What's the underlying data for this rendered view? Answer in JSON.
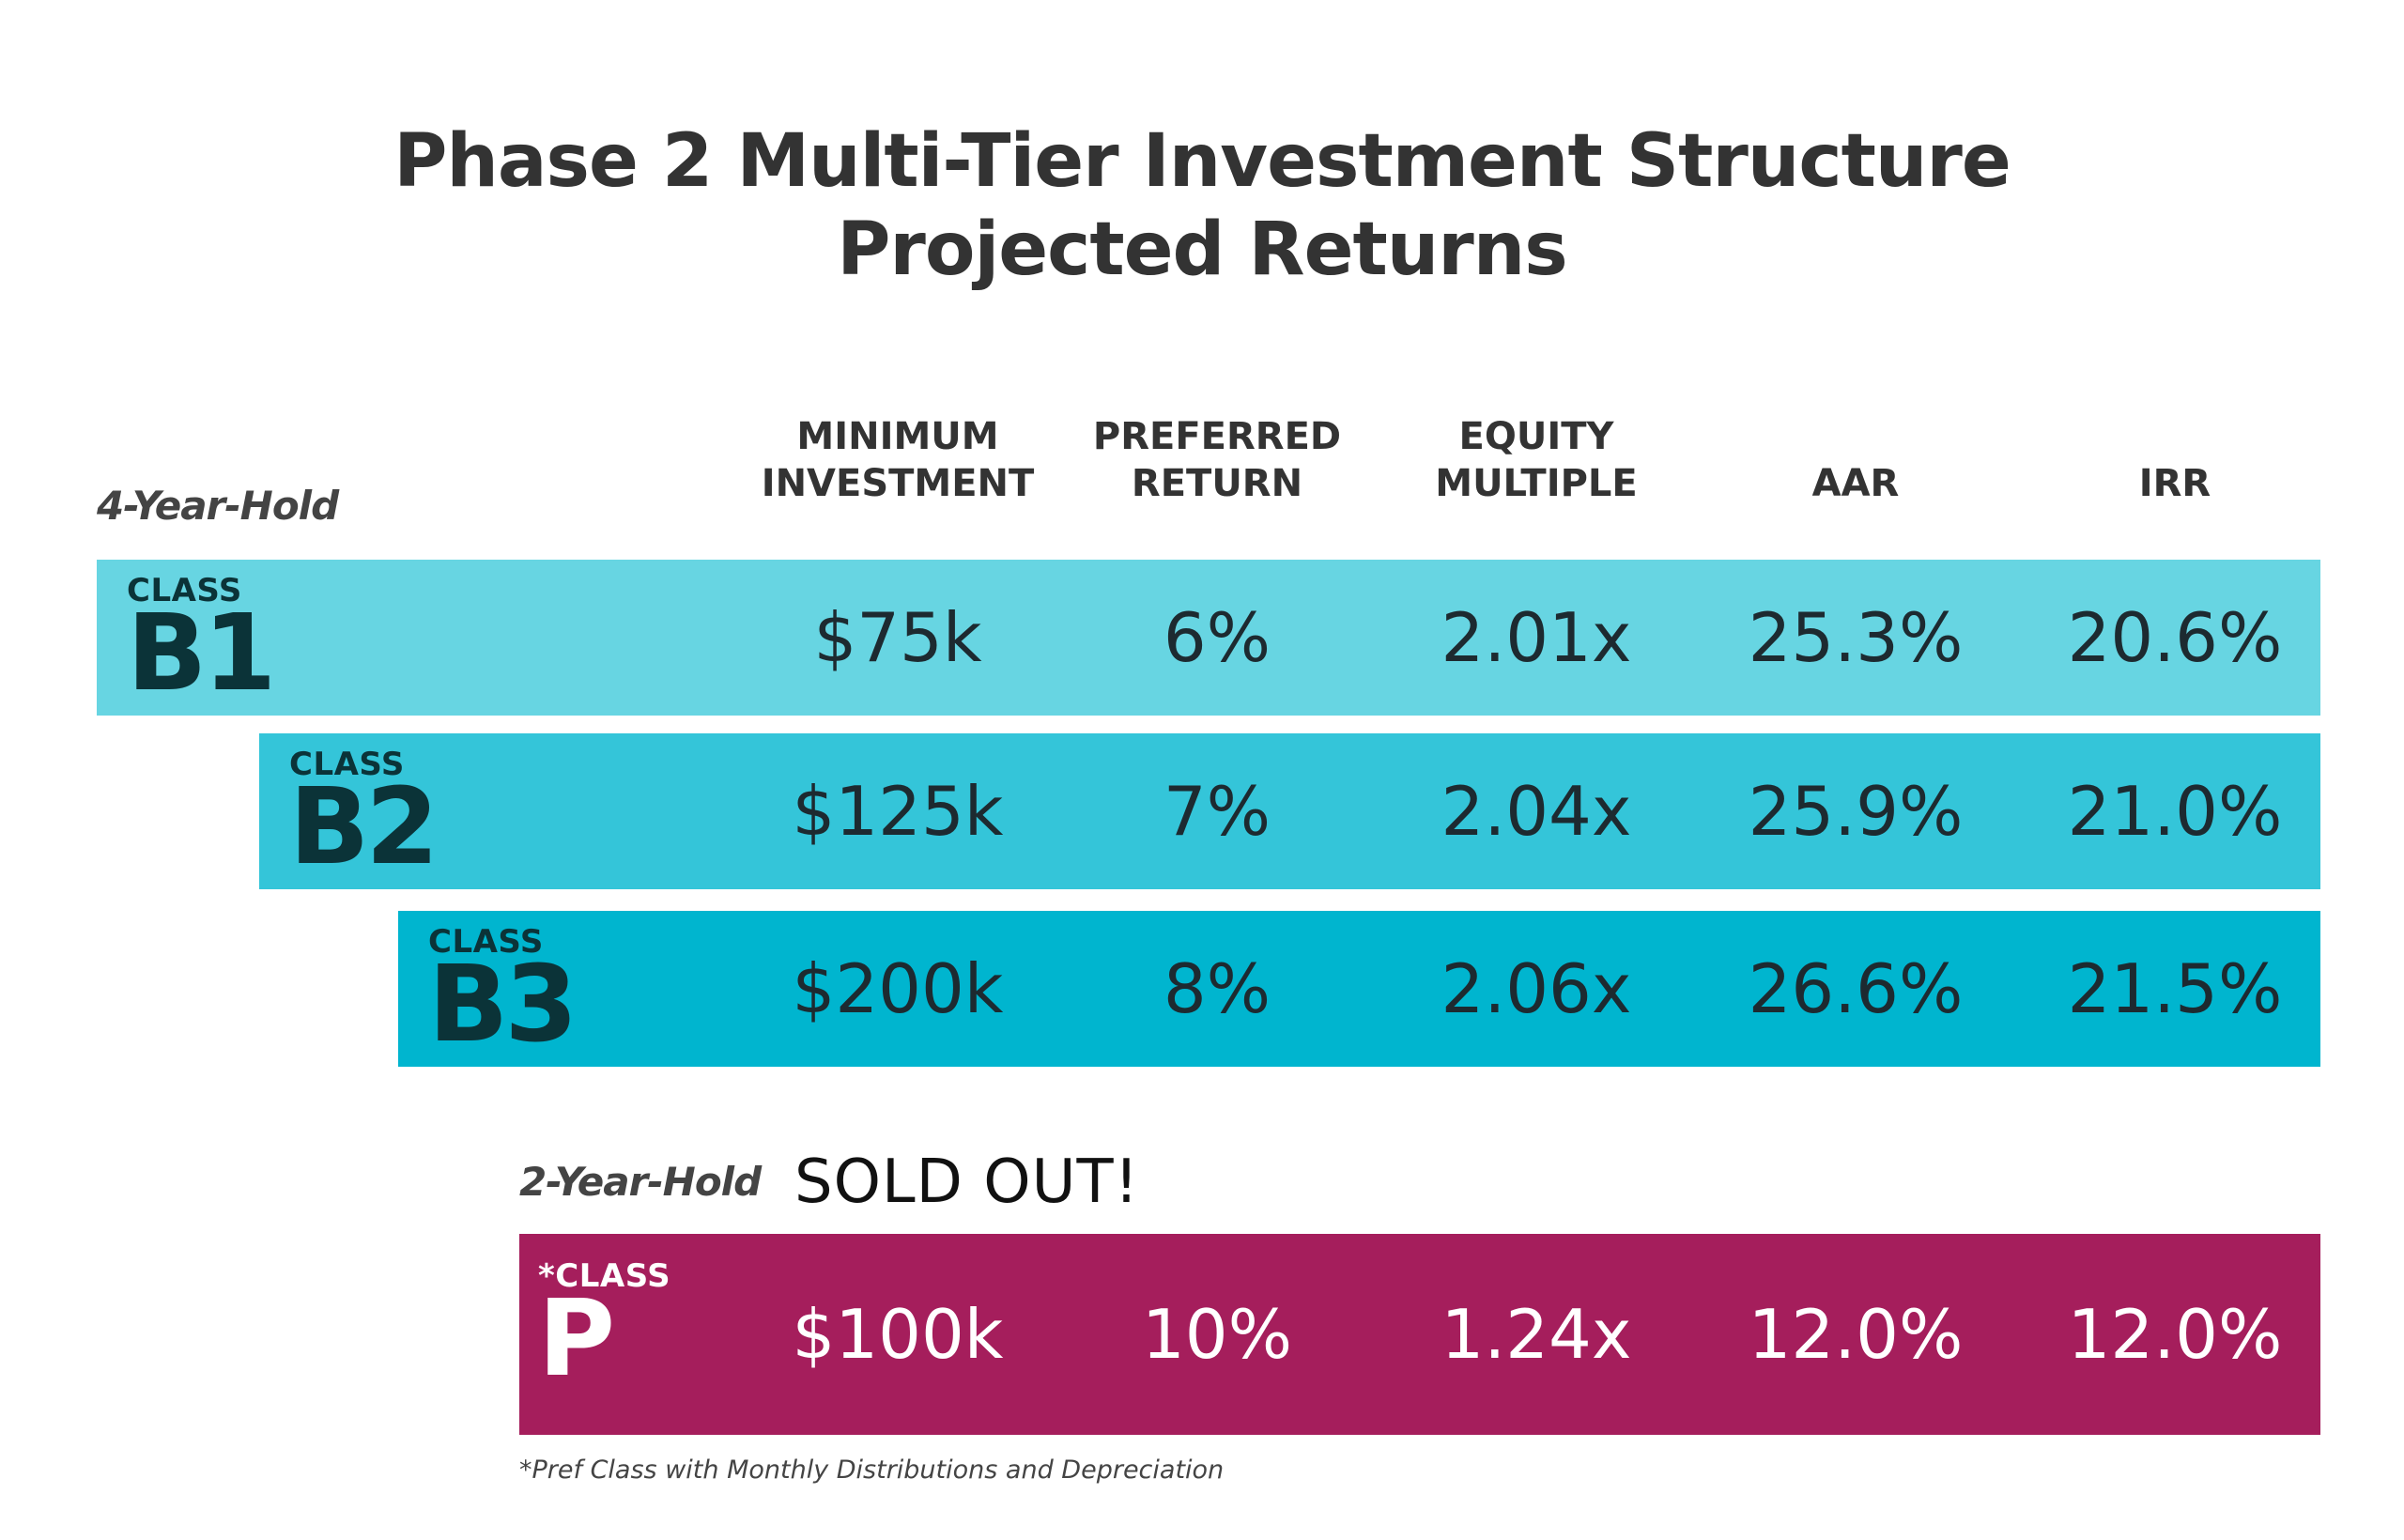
{
  "title": {
    "line1": "Phase 2 Multi-Tier Investment Structure",
    "line2": "Projected Returns"
  },
  "columns": [
    {
      "line1": "MINIMUM",
      "line2": "INVESTMENT"
    },
    {
      "line1": "PREFERRED",
      "line2": "RETURN"
    },
    {
      "line1": "EQUITY",
      "line2": "MULTIPLE"
    },
    {
      "line1": "",
      "line2": "AAR"
    },
    {
      "line1": "",
      "line2": "IRR"
    }
  ],
  "hold4": {
    "label": "4-Year-Hold"
  },
  "hold2": {
    "label": "2-Year-Hold",
    "status": "SOLD OUT!"
  },
  "colors": {
    "b1": "#67d5e2",
    "b2": "#34c5d9",
    "b3": "#00b5cf",
    "p": "#a51e5c",
    "badge_dark": "#0b3338"
  },
  "rows": [
    {
      "class_label": "CLASS",
      "code": "B1",
      "min_investment": "$75k",
      "preferred_return": "6%",
      "equity_multiple": "2.01x",
      "aar": "25.3%",
      "irr": "20.6%"
    },
    {
      "class_label": "CLASS",
      "code": "B2",
      "min_investment": "$125k",
      "preferred_return": "7%",
      "equity_multiple": "2.04x",
      "aar": "25.9%",
      "irr": "21.0%"
    },
    {
      "class_label": "CLASS",
      "code": "B3",
      "min_investment": "$200k",
      "preferred_return": "8%",
      "equity_multiple": "2.06x",
      "aar": "26.6%",
      "irr": "21.5%"
    },
    {
      "class_label": "*CLASS",
      "code": "P",
      "min_investment": "$100k",
      "preferred_return": "10%",
      "equity_multiple": "1.24x",
      "aar": "12.0%",
      "irr": "12.0%"
    }
  ],
  "footnote": "*Pref Class with Monthly Distributions and Depreciation"
}
